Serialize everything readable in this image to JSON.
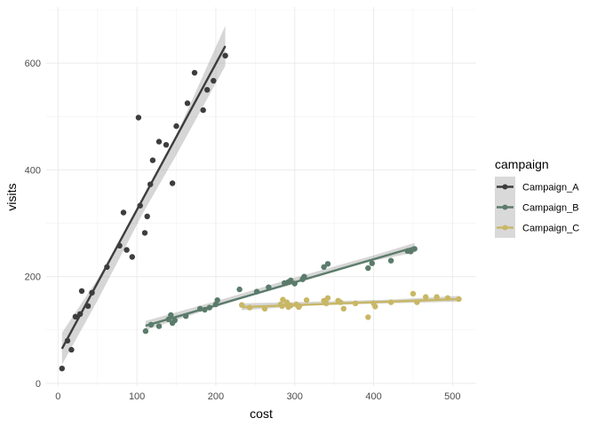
{
  "chart_data": {
    "type": "scatter",
    "title": "",
    "xlabel": "cost",
    "ylabel": "visits",
    "xlim": [
      -15,
      530
    ],
    "ylim": [
      -5,
      705
    ],
    "x_ticks": [
      0,
      100,
      200,
      300,
      400,
      500
    ],
    "y_ticks": [
      0,
      200,
      400,
      600
    ],
    "grid": true,
    "legend": {
      "title": "campaign",
      "position": "right"
    },
    "series": [
      {
        "name": "Campaign_A",
        "color": "#3d3d3d",
        "points": [
          [
            5,
            28
          ],
          [
            12,
            80
          ],
          [
            17,
            63
          ],
          [
            22,
            125
          ],
          [
            28,
            130
          ],
          [
            30,
            173
          ],
          [
            38,
            145
          ],
          [
            43,
            170
          ],
          [
            62,
            218
          ],
          [
            78,
            258
          ],
          [
            83,
            320
          ],
          [
            87,
            250
          ],
          [
            94,
            237
          ],
          [
            102,
            498
          ],
          [
            104,
            333
          ],
          [
            110,
            282
          ],
          [
            113,
            313
          ],
          [
            117,
            373
          ],
          [
            120,
            418
          ],
          [
            128,
            453
          ],
          [
            137,
            447
          ],
          [
            145,
            375
          ],
          [
            150,
            482
          ],
          [
            164,
            525
          ],
          [
            173,
            582
          ],
          [
            184,
            512
          ],
          [
            189,
            550
          ],
          [
            197,
            567
          ],
          [
            212,
            614
          ]
        ],
        "fit": [
          [
            5,
            65
          ],
          [
            212,
            632
          ]
        ],
        "band": [
          [
            5,
            35,
            95
          ],
          [
            50,
            155,
            195
          ],
          [
            108,
            320,
            345
          ],
          [
            150,
            428,
            465
          ],
          [
            212,
            595,
            670
          ]
        ]
      },
      {
        "name": "Campaign_B",
        "color": "#5b7b6b",
        "points": [
          [
            111,
            98
          ],
          [
            118,
            110
          ],
          [
            128,
            107
          ],
          [
            140,
            120
          ],
          [
            143,
            128
          ],
          [
            145,
            113
          ],
          [
            148,
            118
          ],
          [
            162,
            126
          ],
          [
            180,
            140
          ],
          [
            186,
            138
          ],
          [
            192,
            142
          ],
          [
            200,
            148
          ],
          [
            202,
            156
          ],
          [
            230,
            176
          ],
          [
            252,
            172
          ],
          [
            267,
            180
          ],
          [
            287,
            188
          ],
          [
            292,
            190
          ],
          [
            295,
            193
          ],
          [
            300,
            187
          ],
          [
            310,
            195
          ],
          [
            312,
            200
          ],
          [
            337,
            218
          ],
          [
            342,
            224
          ],
          [
            393,
            216
          ],
          [
            398,
            225
          ],
          [
            422,
            230
          ],
          [
            443,
            248
          ],
          [
            447,
            247
          ],
          [
            452,
            252
          ]
        ],
        "fit": [
          [
            111,
            108
          ],
          [
            452,
            255
          ]
        ],
        "band": [
          [
            111,
            100,
            117
          ],
          [
            200,
            143,
            154
          ],
          [
            300,
            190,
            198
          ],
          [
            400,
            230,
            240
          ],
          [
            452,
            245,
            263
          ]
        ]
      },
      {
        "name": "Campaign_C",
        "color": "#c8b765",
        "points": [
          [
            233,
            147
          ],
          [
            243,
            142
          ],
          [
            262,
            140
          ],
          [
            282,
            148
          ],
          [
            284,
            145
          ],
          [
            285,
            157
          ],
          [
            290,
            152
          ],
          [
            292,
            143
          ],
          [
            295,
            146
          ],
          [
            302,
            148
          ],
          [
            305,
            143
          ],
          [
            306,
            145
          ],
          [
            315,
            156
          ],
          [
            337,
            155
          ],
          [
            340,
            150
          ],
          [
            342,
            160
          ],
          [
            355,
            155
          ],
          [
            358,
            152
          ],
          [
            362,
            140
          ],
          [
            377,
            150
          ],
          [
            393,
            124
          ],
          [
            400,
            150
          ],
          [
            402,
            144
          ],
          [
            422,
            152
          ],
          [
            450,
            168
          ],
          [
            455,
            152
          ],
          [
            466,
            162
          ],
          [
            480,
            162
          ],
          [
            494,
            160
          ],
          [
            508,
            158
          ]
        ],
        "fit": [
          [
            233,
            143
          ],
          [
            508,
            158
          ]
        ],
        "band": [
          [
            233,
            137,
            150
          ],
          [
            320,
            146,
            153
          ],
          [
            420,
            150,
            157
          ],
          [
            508,
            153,
            164
          ]
        ]
      }
    ]
  }
}
